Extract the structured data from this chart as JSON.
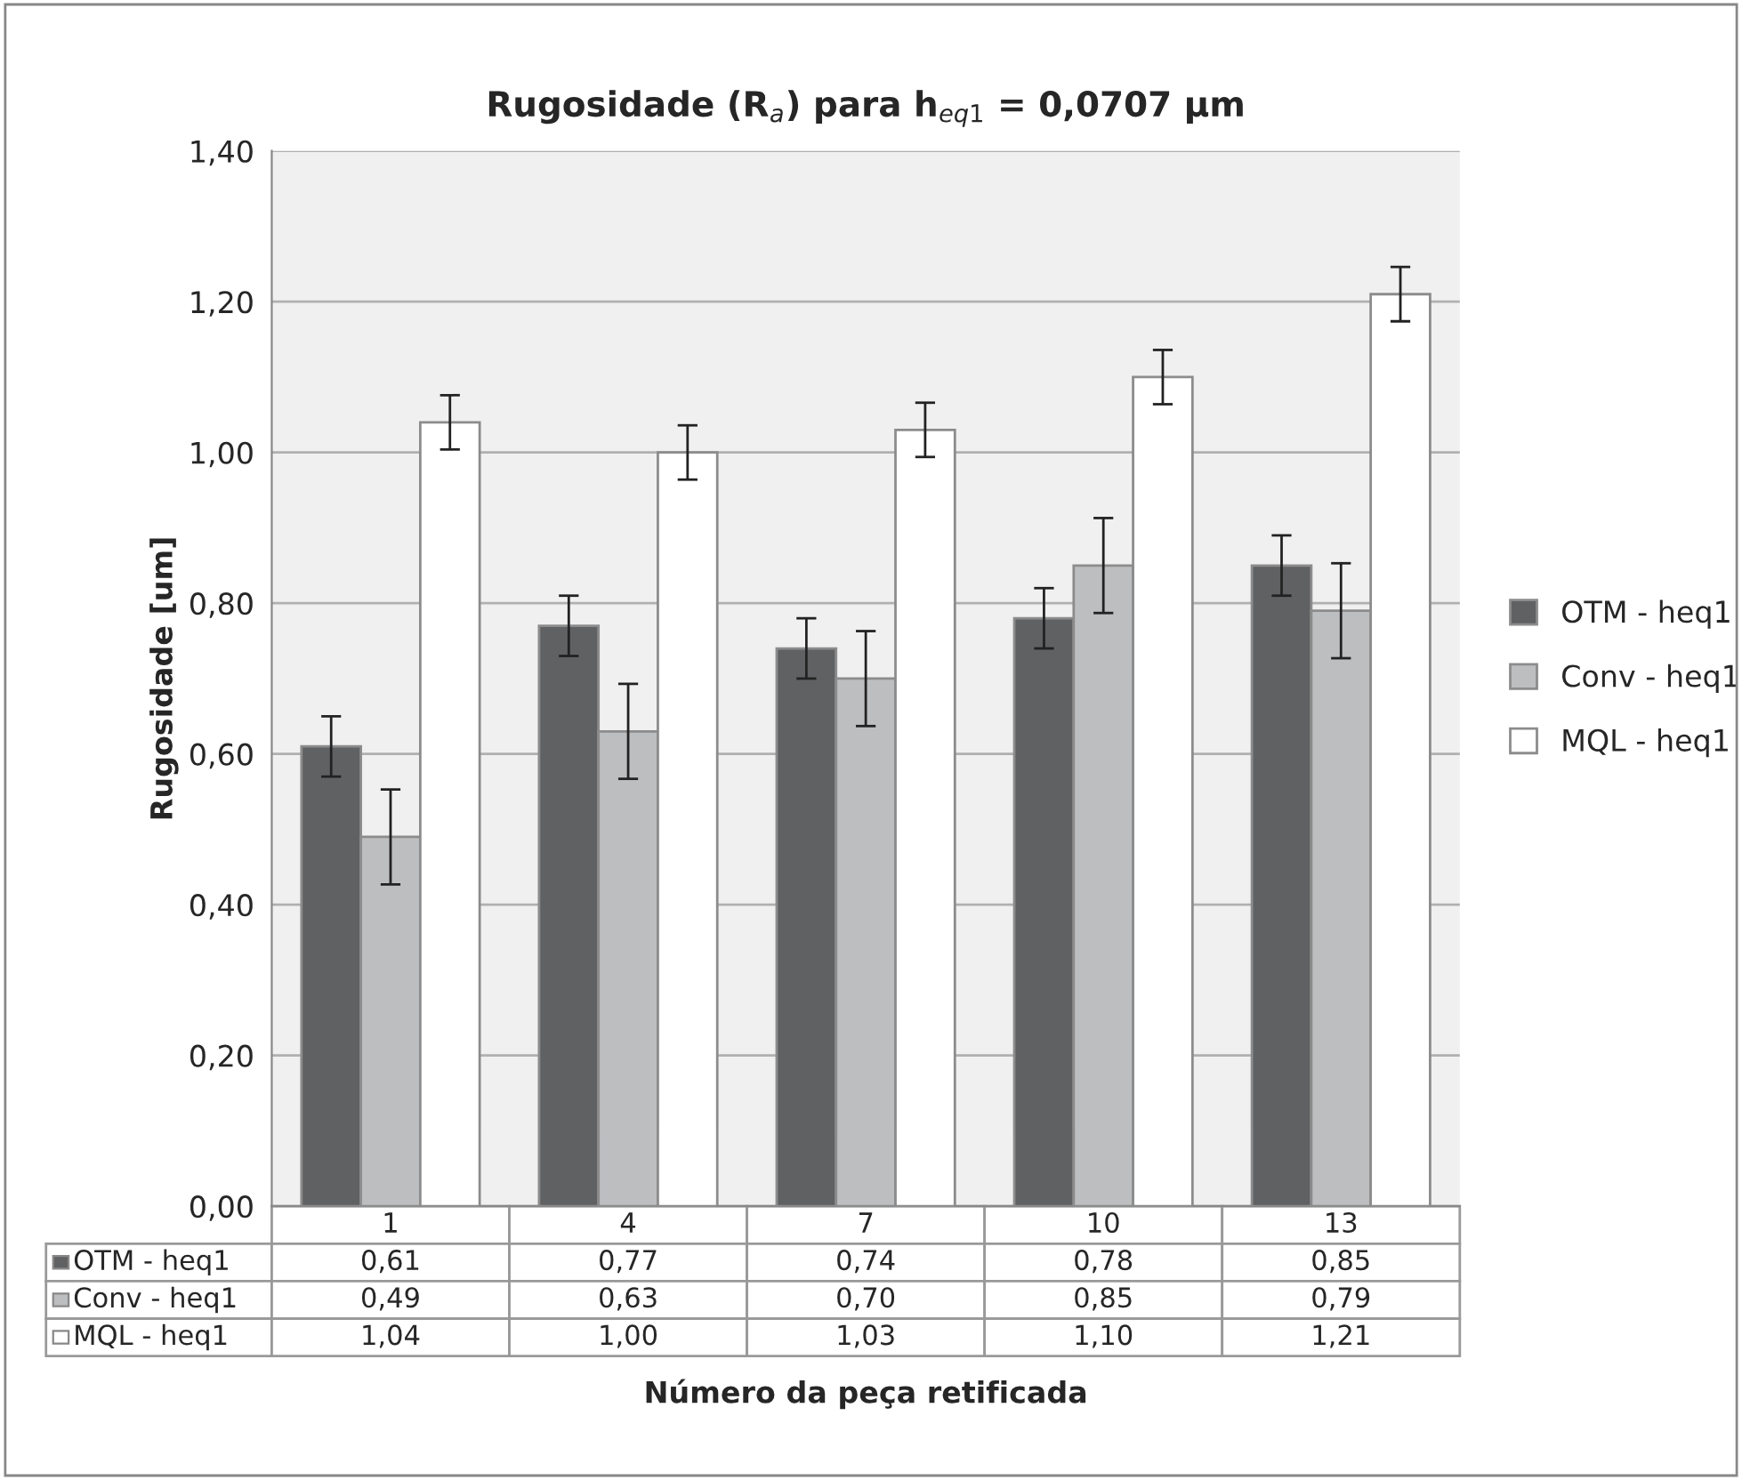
{
  "chart_data": {
    "type": "bar",
    "title": "Rugosidade (R$_{a}$) para h$_{eq1}$ = 0,0707 μm",
    "xlabel": "Número da peça retificada",
    "ylabel": "Rugosidade [um]",
    "categories": [
      "1",
      "4",
      "7",
      "10",
      "13"
    ],
    "series": [
      {
        "name": "OTM - heq1",
        "color": "#606163",
        "values": [
          0.61,
          0.77,
          0.74,
          0.78,
          0.85
        ],
        "value_labels": [
          "0,61",
          "0,77",
          "0,74",
          "0,78",
          "0,85"
        ],
        "errors": [
          0.04,
          0.04,
          0.04,
          0.04,
          0.04
        ]
      },
      {
        "name": "Conv - heq1",
        "color": "#bdbec0",
        "values": [
          0.49,
          0.63,
          0.7,
          0.85,
          0.79
        ],
        "value_labels": [
          "0,49",
          "0,63",
          "0,70",
          "0,85",
          "0,79"
        ],
        "errors": [
          0.063,
          0.063,
          0.063,
          0.063,
          0.063
        ]
      },
      {
        "name": "MQL - heq1",
        "color": "#ffffff",
        "values": [
          1.04,
          1.0,
          1.03,
          1.1,
          1.21
        ],
        "value_labels": [
          "1,04",
          "1,00",
          "1,03",
          "1,10",
          "1,21"
        ],
        "errors": [
          0.036,
          0.036,
          0.036,
          0.036,
          0.036
        ]
      }
    ],
    "ylim": [
      0,
      1.4
    ],
    "yticks": [
      {
        "value": 0,
        "label": "0,00"
      },
      {
        "value": 0.2,
        "label": "0,20"
      },
      {
        "value": 0.4,
        "label": "0,40"
      },
      {
        "value": 0.6,
        "label": "0,60"
      },
      {
        "value": 0.8,
        "label": "0,80"
      },
      {
        "value": 1.0,
        "label": "1,00"
      },
      {
        "value": 1.2,
        "label": "1,20"
      },
      {
        "value": 1.4,
        "label": "1,40"
      }
    ],
    "grid": "y",
    "legend": "right"
  }
}
